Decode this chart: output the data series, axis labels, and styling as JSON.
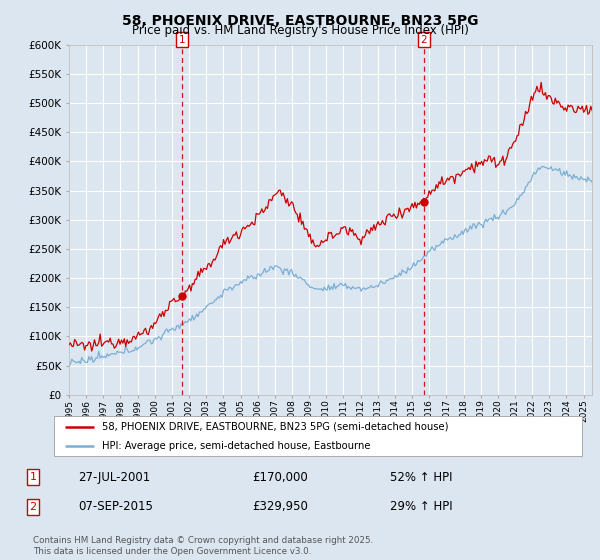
{
  "title": "58, PHOENIX DRIVE, EASTBOURNE, BN23 5PG",
  "subtitle": "Price paid vs. HM Land Registry's House Price Index (HPI)",
  "ylabel_ticks": [
    "£0",
    "£50K",
    "£100K",
    "£150K",
    "£200K",
    "£250K",
    "£300K",
    "£350K",
    "£400K",
    "£450K",
    "£500K",
    "£550K",
    "£600K"
  ],
  "ylim": [
    0,
    600000
  ],
  "ytick_vals": [
    0,
    50000,
    100000,
    150000,
    200000,
    250000,
    300000,
    350000,
    400000,
    450000,
    500000,
    550000,
    600000
  ],
  "red_line_color": "#cc0000",
  "blue_line_color": "#7bafd4",
  "marker1_date_x": 2001.57,
  "marker1_price": 170000,
  "marker2_date_x": 2015.68,
  "marker2_price": 329950,
  "vline_color": "#cc0000",
  "background_color": "#dce6f1",
  "plot_bg_color": "#dce6f1",
  "grid_color": "#ffffff",
  "legend_label_red": "58, PHOENIX DRIVE, EASTBOURNE, BN23 5PG (semi-detached house)",
  "legend_label_blue": "HPI: Average price, semi-detached house, Eastbourne",
  "table_row1": [
    "1",
    "27-JUL-2001",
    "£170,000",
    "52% ↑ HPI"
  ],
  "table_row2": [
    "2",
    "07-SEP-2015",
    "£329,950",
    "29% ↑ HPI"
  ],
  "footnote": "Contains HM Land Registry data © Crown copyright and database right 2025.\nThis data is licensed under the Open Government Licence v3.0.",
  "xmin": 1995,
  "xmax": 2025.5
}
